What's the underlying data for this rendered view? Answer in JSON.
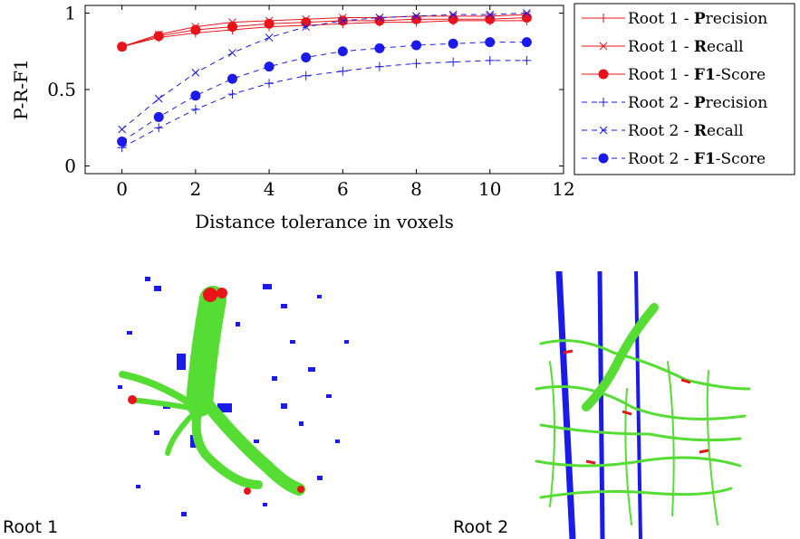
{
  "chart_data": {
    "type": "line",
    "xlabel": "Distance tolerance in voxels",
    "ylabel": "P-R-F1",
    "xlim": [
      -1,
      12
    ],
    "ylim": [
      -0.05,
      1.05
    ],
    "xticks": [
      0,
      2,
      4,
      6,
      8,
      10,
      12
    ],
    "yticks": [
      0,
      0.5,
      1
    ],
    "ytick_labels": [
      "0",
      "0.5",
      "1"
    ],
    "grid": false,
    "legend_position": "outside-right",
    "x": [
      0,
      1,
      2,
      3,
      4,
      5,
      6,
      7,
      8,
      9,
      10,
      11
    ],
    "series": [
      {
        "name": "Root 1 - Precision",
        "name_bold": "P",
        "name_rest": "recision",
        "prefix": "Root 1 - ",
        "color": "#e8141a",
        "dash": "solid",
        "marker": "plus",
        "values": [
          0.78,
          0.84,
          0.87,
          0.89,
          0.91,
          0.92,
          0.93,
          0.94,
          0.94,
          0.95,
          0.95,
          0.95
        ]
      },
      {
        "name": "Root 1 - Recall",
        "name_bold": "R",
        "name_rest": "ecall",
        "prefix": "Root 1 - ",
        "color": "#e8141a",
        "dash": "solid",
        "marker": "x",
        "values": [
          0.78,
          0.86,
          0.91,
          0.94,
          0.95,
          0.96,
          0.97,
          0.97,
          0.98,
          0.98,
          0.98,
          0.99
        ]
      },
      {
        "name": "Root 1 - F1-Score",
        "name_bold": "F1",
        "name_rest": "-Score",
        "prefix": "Root 1 - ",
        "color": "#e8141a",
        "dash": "solid",
        "marker": "circle",
        "values": [
          0.78,
          0.85,
          0.89,
          0.91,
          0.93,
          0.94,
          0.95,
          0.95,
          0.96,
          0.96,
          0.96,
          0.97
        ]
      },
      {
        "name": "Root 2 - Precision",
        "name_bold": "P",
        "name_rest": "recision",
        "prefix": "Root 2 - ",
        "color": "#1a1aeb",
        "dash": "dashed",
        "marker": "plus",
        "values": [
          0.12,
          0.25,
          0.37,
          0.47,
          0.54,
          0.59,
          0.62,
          0.65,
          0.67,
          0.68,
          0.69,
          0.69
        ]
      },
      {
        "name": "Root 2 - Recall",
        "name_bold": "R",
        "name_rest": "ecall",
        "prefix": "Root 2 - ",
        "color": "#1a1aeb",
        "dash": "dashed",
        "marker": "x",
        "values": [
          0.24,
          0.44,
          0.61,
          0.74,
          0.84,
          0.91,
          0.95,
          0.97,
          0.98,
          0.99,
          0.99,
          1.0
        ]
      },
      {
        "name": "Root 2 - F1-Score",
        "name_bold": "F1",
        "name_rest": "-Score",
        "prefix": "Root 2 - ",
        "color": "#1a1aeb",
        "dash": "dashed",
        "marker": "circle",
        "values": [
          0.16,
          0.32,
          0.46,
          0.57,
          0.65,
          0.71,
          0.75,
          0.77,
          0.79,
          0.8,
          0.81,
          0.81
        ]
      }
    ]
  },
  "panels": [
    {
      "label": "Root 1"
    },
    {
      "label": "Root 2"
    }
  ],
  "colors": {
    "segment": "#55dd33",
    "noise": "#1a1aeb",
    "error": "#e8141a"
  }
}
